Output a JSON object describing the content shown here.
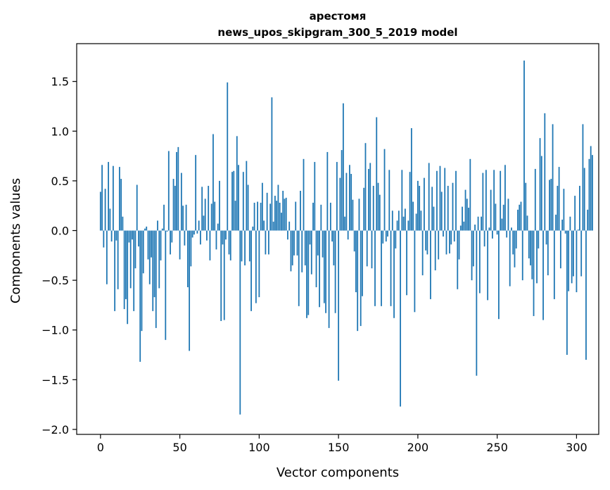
{
  "chart_data": {
    "type": "bar",
    "title_line1": "арестомя",
    "title_line2": "news_upos_skipgram_300_5_2019 model",
    "xlabel": "Vector components",
    "ylabel": "Components values",
    "xlim": [
      -15,
      314
    ],
    "ylim": [
      -2.05,
      1.88
    ],
    "xticks": [
      0,
      50,
      100,
      150,
      200,
      250,
      300
    ],
    "xtick_labels": [
      "0",
      "50",
      "100",
      "150",
      "200",
      "250",
      "300"
    ],
    "yticks": [
      -2.0,
      -1.5,
      -1.0,
      -0.5,
      0.0,
      0.5,
      1.0,
      1.5
    ],
    "ytick_labels": [
      "−2.0",
      "−1.5",
      "−1.0",
      "−0.5",
      "0.0",
      "0.5",
      "1.0",
      "1.5"
    ],
    "bar_color": "#1f77b4",
    "grid": false,
    "values": [
      0.39,
      0.66,
      -0.17,
      0.42,
      -0.54,
      0.69,
      0.22,
      -0.11,
      0.65,
      -0.81,
      -0.1,
      -0.59,
      0.64,
      0.52,
      0.14,
      -0.79,
      -0.69,
      -0.94,
      -0.12,
      -0.58,
      -0.09,
      -0.81,
      -0.38,
      0.46,
      -0.16,
      -1.32,
      -1.01,
      -0.43,
      0.02,
      0.04,
      -0.29,
      -0.54,
      -0.27,
      -0.81,
      -0.67,
      -0.98,
      0.1,
      -0.58,
      -0.3,
      0.02,
      0.26,
      -1.1,
      -0.01,
      0.8,
      -0.24,
      -0.12,
      0.52,
      0.45,
      0.79,
      0.84,
      -0.29,
      0.58,
      0.25,
      -0.15,
      0.26,
      -0.57,
      -1.21,
      -0.36,
      -0.07,
      -0.04,
      0.76,
      -0.03,
      0.1,
      -0.14,
      0.44,
      0.15,
      0.32,
      -0.1,
      0.45,
      -0.3,
      0.27,
      0.97,
      0.29,
      -0.19,
      0.07,
      0.5,
      -0.91,
      -0.14,
      -0.9,
      -0.09,
      1.49,
      -0.24,
      -0.3,
      0.59,
      0.6,
      0.3,
      0.95,
      0.66,
      -1.85,
      -0.31,
      0.59,
      -0.35,
      0.7,
      0.46,
      -0.31,
      -0.81,
      0.04,
      0.28,
      -0.73,
      0.29,
      -0.67,
      0.28,
      0.48,
      0.1,
      -0.24,
      0.38,
      -0.24,
      0.27,
      1.34,
      0.09,
      0.35,
      0.3,
      0.46,
      0.28,
      0.18,
      0.4,
      0.32,
      0.33,
      -0.09,
      0.09,
      -0.41,
      -0.35,
      -0.25,
      0.29,
      -0.25,
      -0.76,
      0.4,
      -0.42,
      0.72,
      -0.35,
      -0.88,
      -0.85,
      -0.14,
      -0.44,
      0.28,
      0.69,
      -0.57,
      -0.25,
      -0.77,
      0.26,
      -0.27,
      -0.73,
      -0.83,
      0.79,
      -0.98,
      0.28,
      -0.11,
      -0.35,
      -0.83,
      0.69,
      -1.51,
      0.53,
      0.81,
      1.28,
      0.14,
      0.58,
      -0.09,
      0.66,
      0.57,
      0.31,
      -0.21,
      -0.62,
      -1.01,
      0.32,
      -0.96,
      -0.66,
      0.43,
      0.88,
      -0.36,
      0.62,
      0.68,
      -0.38,
      0.45,
      -0.76,
      1.14,
      0.48,
      0.36,
      -0.76,
      -0.13,
      0.82,
      -0.11,
      -0.06,
      0.61,
      -0.76,
      0.2,
      -0.88,
      -0.18,
      0.1,
      0.2,
      -1.77,
      0.61,
      0.14,
      0.22,
      -0.65,
      0.1,
      0.59,
      1.03,
      0.29,
      -0.82,
      0.17,
      0.5,
      0.45,
      0.2,
      -0.45,
      0.53,
      -0.2,
      -0.24,
      0.68,
      -0.69,
      0.44,
      0.24,
      -0.4,
      0.6,
      -0.29,
      0.65,
      0.39,
      -0.06,
      0.63,
      -0.24,
      0.45,
      -0.23,
      -0.14,
      0.48,
      -0.11,
      0.6,
      -0.59,
      -0.29,
      0.05,
      0.24,
      0.09,
      0.41,
      0.32,
      0.23,
      0.72,
      -0.5,
      -0.36,
      0.06,
      -1.46,
      0.14,
      -0.63,
      0.14,
      0.58,
      -0.16,
      0.61,
      -0.7,
      0.03,
      0.41,
      -0.08,
      0.61,
      0.27,
      -0.04,
      -0.89,
      0.6,
      0.12,
      0.26,
      0.66,
      -0.07,
      0.32,
      -0.56,
      0.03,
      -0.24,
      -0.37,
      -0.18,
      0.21,
      0.26,
      0.29,
      -0.5,
      1.71,
      0.48,
      0.15,
      -0.28,
      -0.35,
      -0.49,
      -0.86,
      0.62,
      -0.53,
      -0.18,
      0.93,
      0.75,
      -0.9,
      1.18,
      -0.14,
      -0.45,
      0.51,
      0.52,
      1.07,
      -0.69,
      0.16,
      0.45,
      0.64,
      -0.38,
      0.11,
      0.42,
      -0.03,
      -1.25,
      -0.61,
      0.14,
      -0.53,
      -0.46,
      0.35,
      -0.62,
      0.01,
      0.45,
      -0.46,
      1.07,
      0.63,
      -1.3,
      0.21,
      0.72,
      0.85,
      0.76
    ]
  }
}
